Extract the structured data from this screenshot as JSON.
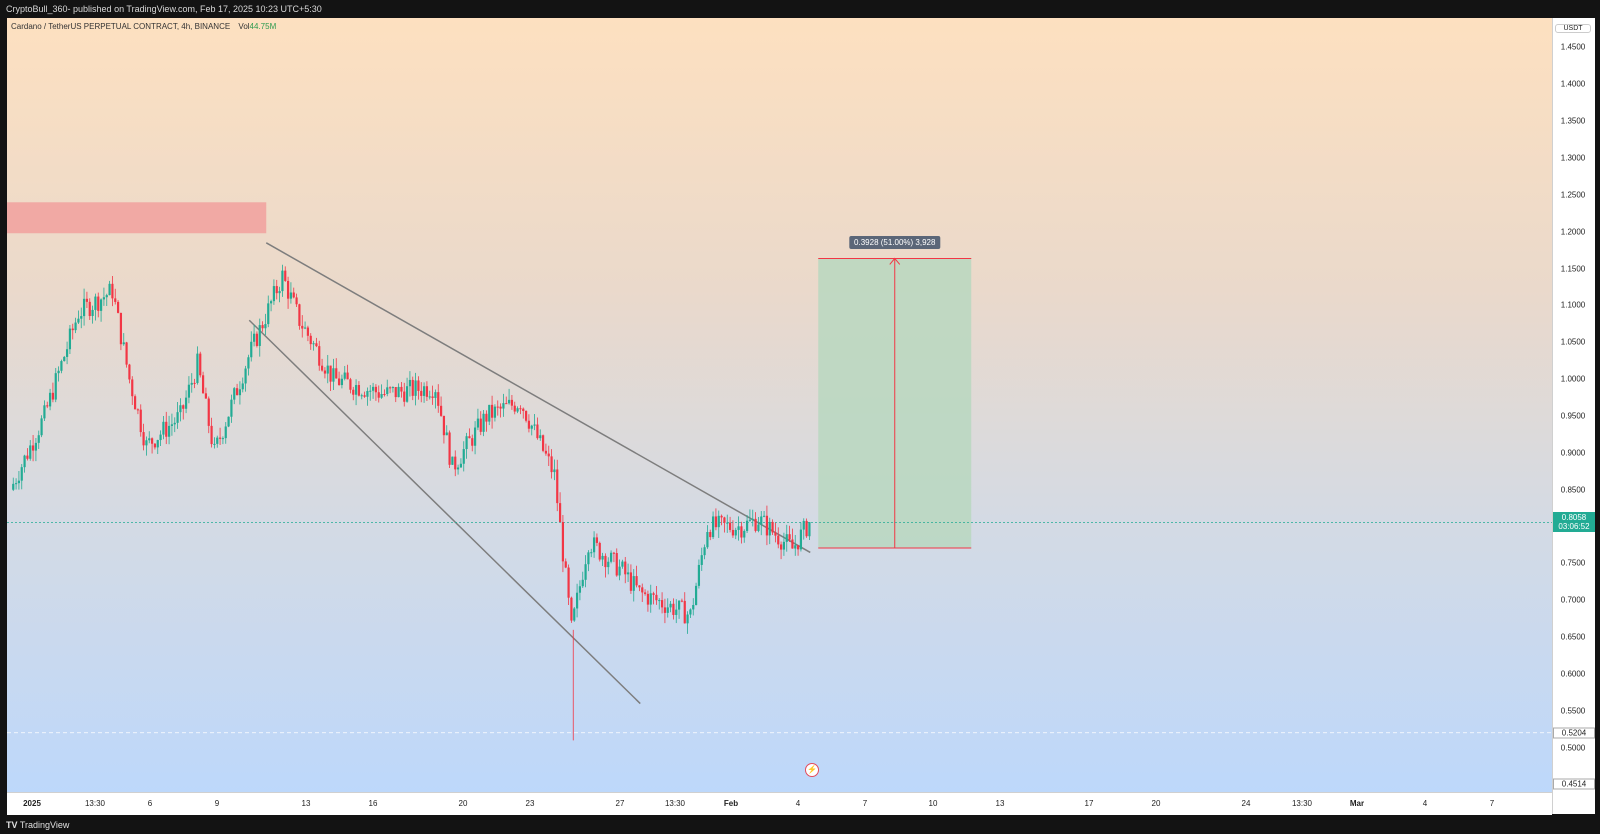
{
  "header": {
    "publish_line": "CryptoBull_360- published on TradingView.com, Feb 17, 2025 10:23 UTC+5:30"
  },
  "legend": {
    "symbol": "Cardano / TetherUS PERPETUAL CONTRACT, 4h, BINANCE",
    "vol_label": "Vol",
    "vol_value": "44.75M"
  },
  "price_axis": {
    "unit": "USDT",
    "ticks": [
      "1.4500",
      "1.4000",
      "1.3500",
      "1.3000",
      "1.2500",
      "1.2000",
      "1.1500",
      "1.1000",
      "1.0500",
      "1.0000",
      "0.9500",
      "0.9000",
      "0.8500",
      "0.7500",
      "0.7000",
      "0.6500",
      "0.6000",
      "0.5500",
      "0.5000"
    ],
    "last_price": "0.8058",
    "countdown": "03:06:52",
    "low_marker": "0.5204",
    "min_marker": "0.4514"
  },
  "x_axis": {
    "ticks": [
      "2025",
      "13:30",
      "6",
      "9",
      "13",
      "16",
      "20",
      "23",
      "27",
      "13:30",
      "Feb",
      "4",
      "7",
      "10",
      "13",
      "17",
      "20",
      "24",
      "13:30",
      "Mar",
      "4",
      "7"
    ]
  },
  "measure_tooltip": "0.3928 (51.00%) 3,928",
  "footer": {
    "brand": "TradingView"
  },
  "colors": {
    "up": "#22ab94",
    "down": "#f23645",
    "supply_zone": "#f1a9a4",
    "target_zone": "#b9d7bf",
    "trendline": "#7d7d7d"
  },
  "icons": {
    "lightning": "lightning-icon"
  },
  "chart_data": {
    "type": "candlestick",
    "timeframe": "4h",
    "y_range": [
      0.44,
      1.49
    ],
    "last_price": 0.8058,
    "approx_close_path": [
      {
        "t": "Jan 01",
        "close": 0.85
      },
      {
        "t": "Jan 03",
        "close": 0.95
      },
      {
        "t": "Jan 05",
        "close": 1.09
      },
      {
        "t": "Jan 07",
        "close": 1.12
      },
      {
        "t": "Jan 08",
        "close": 1.0
      },
      {
        "t": "Jan 09",
        "close": 0.91
      },
      {
        "t": "Jan 11",
        "close": 0.95
      },
      {
        "t": "Jan 12",
        "close": 1.02
      },
      {
        "t": "Jan 13",
        "close": 0.9
      },
      {
        "t": "Jan 15",
        "close": 1.03
      },
      {
        "t": "Jan 17",
        "close": 1.14
      },
      {
        "t": "Jan 18",
        "close": 1.08
      },
      {
        "t": "Jan 20",
        "close": 1.0
      },
      {
        "t": "Jan 23",
        "close": 0.98
      },
      {
        "t": "Jan 26",
        "close": 0.99
      },
      {
        "t": "Jan 27",
        "close": 0.88
      },
      {
        "t": "Jan 29",
        "close": 0.95
      },
      {
        "t": "Jan 31",
        "close": 0.97
      },
      {
        "t": "Feb 02",
        "close": 0.87
      },
      {
        "t": "Feb 03",
        "close": 0.66
      },
      {
        "t": "Feb 03",
        "low": 0.51
      },
      {
        "t": "Feb 04",
        "close": 0.78
      },
      {
        "t": "Feb 06",
        "close": 0.74
      },
      {
        "t": "Feb 07",
        "close": 0.71
      },
      {
        "t": "Feb 09",
        "close": 0.69
      },
      {
        "t": "Feb 10",
        "close": 0.68
      },
      {
        "t": "Feb 11",
        "close": 0.8
      },
      {
        "t": "Feb 13",
        "close": 0.8
      },
      {
        "t": "Feb 14",
        "close": 0.81
      },
      {
        "t": "Feb 16",
        "close": 0.77
      },
      {
        "t": "Feb 17",
        "close": 0.8058
      }
    ],
    "drawings": {
      "supply_zone": {
        "from": "Jan 01",
        "to": "Jan 16",
        "price_low": 1.198,
        "price_high": 1.24
      },
      "upper_trendline": [
        {
          "t": "Jan 16",
          "price": 1.185
        },
        {
          "t": "Feb 17",
          "price": 0.765
        }
      ],
      "lower_trendline": [
        {
          "t": "Jan 15",
          "price": 1.08
        },
        {
          "t": "Feb 07",
          "price": 0.56
        }
      ],
      "target_zone": {
        "from": "Feb 17",
        "to": "Feb 26",
        "price_low": 0.771,
        "price_high": 1.1638
      },
      "measure": {
        "change": 0.3928,
        "percent": 51.0
      }
    }
  }
}
